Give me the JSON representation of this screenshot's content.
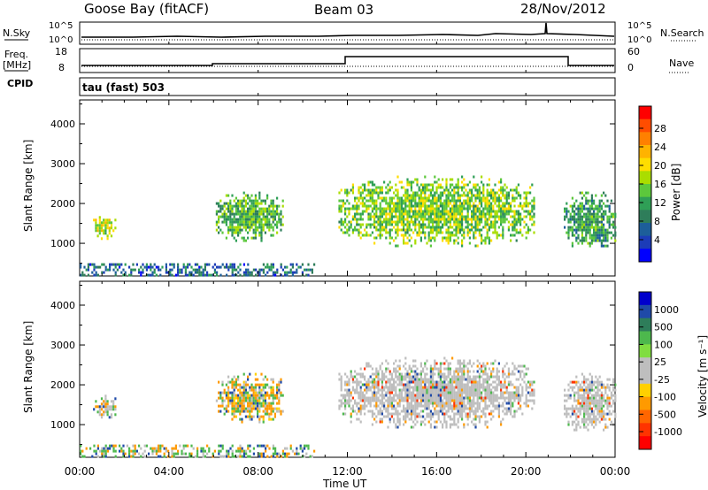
{
  "header": {
    "station": "Goose Bay (fitACF)",
    "beam": "Beam 03",
    "date": "28/Nov/2012"
  },
  "status_panels": {
    "nsky_label": "N.Sky",
    "nsearch_label": "N.Search",
    "freq_label": "Freq.",
    "freq_unit": "[MHz]",
    "nave_label": "Nave",
    "cpid_label": "CPID",
    "cpid_text": "tau (fast) 503",
    "noise_left_ticks": [
      "10^5",
      "10^0"
    ],
    "noise_right_ticks": [
      "10^5",
      "10^0"
    ],
    "freq_left_ticks": [
      "18",
      "8"
    ],
    "nave_right_ticks": [
      "60",
      "0"
    ]
  },
  "colorbars": {
    "power": {
      "label": "Power [dB]",
      "ticks": [
        "28",
        "24",
        "20",
        "16",
        "12",
        "8",
        "4"
      ],
      "colors": [
        "#ff0000",
        "#ff4d00",
        "#ff8000",
        "#ffb300",
        "#ffdd00",
        "#aadd00",
        "#5cc83c",
        "#2f9f56",
        "#2e7d5a",
        "#1d5e9a",
        "#1c3cb8",
        "#0000ff"
      ]
    },
    "velocity": {
      "label": "Velocity [m s⁻¹]",
      "ticks": [
        "1000",
        "500",
        "100",
        "25",
        "-25",
        "-100",
        "-500",
        "-1000"
      ],
      "colors": [
        "#0000cc",
        "#1f4aa8",
        "#2e7d5a",
        "#4db84d",
        "#80dd40",
        "#bebebe",
        "#bebebe",
        "#ffd000",
        "#ff9a00",
        "#ff6600",
        "#ff3300",
        "#ff0000"
      ]
    }
  },
  "axes": {
    "y_label": "Slant Range [km]",
    "x_label": "Time UT"
  },
  "chart_data": [
    {
      "type": "heatmap",
      "title": "Power",
      "ylabel": "Slant Range [km]",
      "x_ticks": [
        "00:00",
        "04:00",
        "08:00",
        "12:00",
        "16:00",
        "20:00",
        "00:00"
      ],
      "xlim": [
        0,
        24
      ],
      "ylim": [
        180,
        4600
      ],
      "y_ticks": [
        1000,
        2000,
        3000,
        4000
      ],
      "echo_regions": [
        {
          "t0": 0.6,
          "t1": 1.6,
          "r0": 1150,
          "r1": 1750,
          "power_db": 18
        },
        {
          "t0": 6.1,
          "t1": 9.1,
          "r0": 1050,
          "r1": 2300,
          "power_db": 14
        },
        {
          "t0": 11.6,
          "t1": 20.4,
          "r0": 950,
          "r1": 2700,
          "power_db": 16
        },
        {
          "t0": 21.7,
          "t1": 24,
          "r0": 850,
          "r1": 2300,
          "power_db": 12
        },
        {
          "t0": 0,
          "t1": 10.5,
          "r0": 200,
          "r1": 500,
          "power_db": 8
        }
      ]
    },
    {
      "type": "heatmap",
      "title": "Velocity",
      "ylabel": "Slant Range [km]",
      "xlabel": "Time UT",
      "x_ticks": [
        "00:00",
        "04:00",
        "08:00",
        "12:00",
        "16:00",
        "20:00",
        "00:00"
      ],
      "xlim": [
        0,
        24
      ],
      "ylim": [
        180,
        4600
      ],
      "y_ticks": [
        1000,
        2000,
        3000,
        4000
      ],
      "echo_regions": [
        {
          "t0": 0.6,
          "t1": 1.6,
          "r0": 1150,
          "r1": 1750,
          "velocity": 300
        },
        {
          "t0": 6.1,
          "t1": 9.1,
          "r0": 1050,
          "r1": 2300,
          "velocity": -100
        },
        {
          "t0": 11.6,
          "t1": 20.4,
          "r0": 950,
          "r1": 2700,
          "velocity": 0
        },
        {
          "t0": 21.7,
          "t1": 24,
          "r0": 850,
          "r1": 2300,
          "velocity": 0
        },
        {
          "t0": 0,
          "t1": 10.5,
          "r0": 200,
          "r1": 500,
          "velocity": 50
        }
      ]
    }
  ]
}
